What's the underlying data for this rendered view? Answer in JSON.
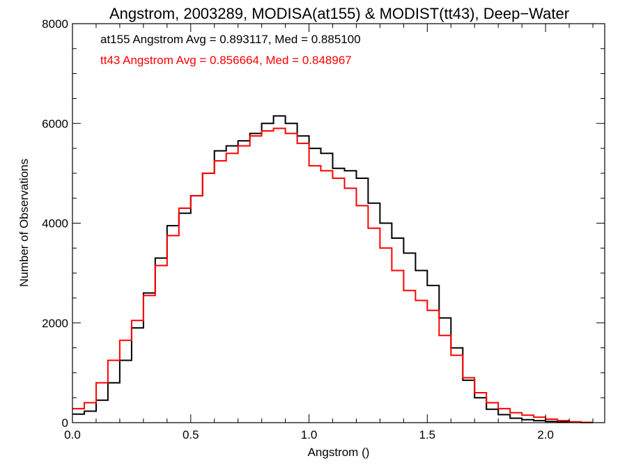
{
  "chart_data": {
    "type": "line",
    "step": true,
    "title": "Angstrom, 2003289, MODISA(at155) & MODIST(tt43), Deep−Water",
    "xlabel": "Angstrom ()",
    "ylabel": "Number of Observations",
    "xlim": [
      0.0,
      2.25
    ],
    "ylim": [
      0,
      8000
    ],
    "xticks": [
      0.0,
      0.5,
      1.0,
      1.5,
      2.0
    ],
    "xtick_labels": [
      "0.0",
      "0.5",
      "1.0",
      "1.5",
      "2.0"
    ],
    "xminor_step": 0.1,
    "yticks": [
      0,
      2000,
      4000,
      6000,
      8000
    ],
    "ytick_labels": [
      "0",
      "2000",
      "4000",
      "6000",
      "8000"
    ],
    "yminor_step": 500,
    "grid": false,
    "annotations": [
      {
        "text": "at155 Angstrom Avg = 0.893117, Med = 0.885100",
        "color": "#000000"
      },
      {
        "text": "tt43 Angstrom Avg = 0.856664, Med = 0.848967",
        "color": "#ff0000"
      }
    ],
    "series": [
      {
        "color": "#000000",
        "x": [
          0.0,
          0.05,
          0.1,
          0.15,
          0.2,
          0.25,
          0.3,
          0.35,
          0.4,
          0.45,
          0.5,
          0.55,
          0.6,
          0.65,
          0.7,
          0.75,
          0.8,
          0.85,
          0.9,
          0.95,
          1.0,
          1.05,
          1.1,
          1.15,
          1.2,
          1.25,
          1.3,
          1.35,
          1.4,
          1.45,
          1.5,
          1.55,
          1.6,
          1.65,
          1.7,
          1.75,
          1.8,
          1.85,
          1.9,
          1.95,
          2.0,
          2.05,
          2.1,
          2.15
        ],
        "y": [
          170,
          230,
          450,
          800,
          1250,
          1900,
          2600,
          3300,
          3950,
          4200,
          4550,
          5000,
          5450,
          5550,
          5650,
          5800,
          6000,
          6150,
          6000,
          5750,
          5500,
          5400,
          5100,
          5050,
          4900,
          4400,
          4000,
          3700,
          3400,
          3050,
          2750,
          2100,
          1500,
          850,
          500,
          270,
          160,
          90,
          60,
          40,
          25,
          15,
          8,
          3
        ]
      },
      {
        "color": "#ff0000",
        "x": [
          0.0,
          0.05,
          0.1,
          0.15,
          0.2,
          0.25,
          0.3,
          0.35,
          0.4,
          0.45,
          0.5,
          0.55,
          0.6,
          0.65,
          0.7,
          0.75,
          0.8,
          0.85,
          0.9,
          0.95,
          1.0,
          1.05,
          1.1,
          1.15,
          1.2,
          1.25,
          1.3,
          1.35,
          1.4,
          1.45,
          1.5,
          1.55,
          1.6,
          1.65,
          1.7,
          1.75,
          1.8,
          1.85,
          1.9,
          1.95,
          2.0,
          2.05,
          2.1,
          2.15
        ],
        "y": [
          280,
          400,
          800,
          1250,
          1650,
          2050,
          2550,
          3150,
          3750,
          4300,
          4550,
          5000,
          5250,
          5400,
          5550,
          5750,
          5850,
          5900,
          5800,
          5600,
          5150,
          5050,
          4900,
          4700,
          4350,
          3900,
          3500,
          3050,
          2650,
          2450,
          2250,
          1750,
          1350,
          900,
          600,
          400,
          280,
          200,
          150,
          110,
          70,
          40,
          18,
          6
        ]
      }
    ]
  }
}
